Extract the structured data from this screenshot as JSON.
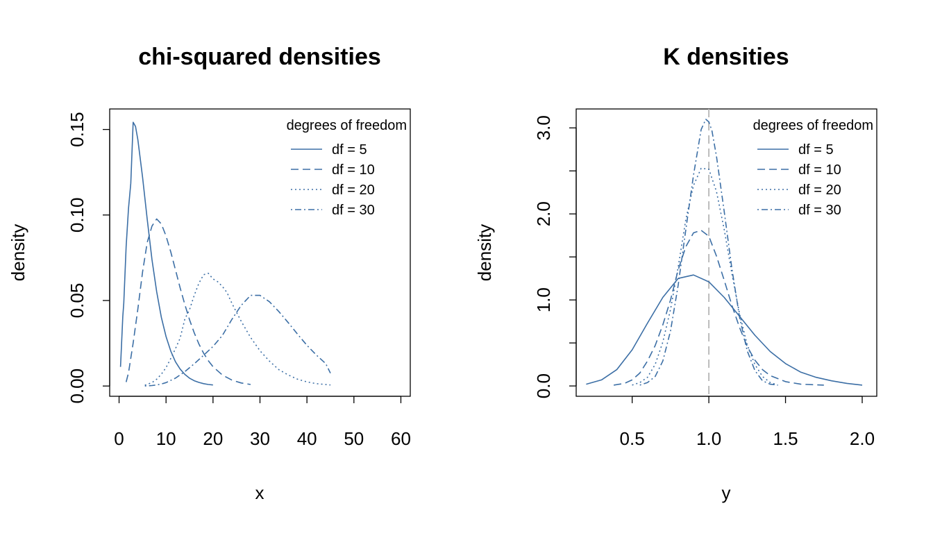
{
  "colors": {
    "series": "#3B6EA5",
    "axis": "#000000",
    "reference_line": "#BBBBBB",
    "background": "#FFFFFF"
  },
  "chart_data": [
    {
      "type": "line",
      "title": "chi-squared densities",
      "xlabel": "x",
      "ylabel": "density",
      "xlim": [
        -2,
        62
      ],
      "ylim": [
        -0.006,
        0.162
      ],
      "xticks": [
        0,
        10,
        20,
        30,
        40,
        50,
        60
      ],
      "xtick_labels": [
        "0",
        "10",
        "20",
        "30",
        "40",
        "50",
        "60"
      ],
      "yticks": [
        0,
        0.05,
        0.1,
        0.15
      ],
      "ytick_labels": [
        "0.00",
        "0.05",
        "0.10",
        "0.15"
      ],
      "ytick_minor": [],
      "legend": {
        "title": "degrees of freedom",
        "placement": "top-right",
        "entries": [
          "df = 5",
          "df = 10",
          "df = 20",
          "df = 30"
        ]
      },
      "series": [
        {
          "name": "df = 5",
          "linestyle": "solid",
          "x": [
            0.3,
            0.5,
            0.8,
            1,
            1.5,
            2,
            2.5,
            3,
            3.5,
            4,
            5,
            6,
            7,
            8,
            9,
            10,
            11,
            12,
            13,
            14,
            15,
            16,
            17,
            18,
            19,
            20
          ],
          "y": [
            0.0112,
            0.0227,
            0.0407,
            0.0484,
            0.0815,
            0.1038,
            0.1185,
            0.1542,
            0.1518,
            0.144,
            0.122,
            0.0974,
            0.074,
            0.0551,
            0.0402,
            0.0289,
            0.0204,
            0.0142,
            0.0099,
            0.0068,
            0.0046,
            0.0031,
            0.0021,
            0.0014,
            0.0009,
            0.0006
          ]
        },
        {
          "name": "df = 10",
          "linestyle": "dashed",
          "x": [
            1.5,
            2,
            3,
            4,
            5,
            6,
            7,
            8,
            9,
            10,
            11,
            12,
            13,
            14,
            15,
            16,
            17,
            18,
            19,
            20,
            22,
            24,
            26,
            28
          ],
          "y": [
            0.0023,
            0.0077,
            0.0251,
            0.0451,
            0.0668,
            0.084,
            0.0935,
            0.0977,
            0.0948,
            0.0877,
            0.0784,
            0.068,
            0.0574,
            0.0476,
            0.0388,
            0.0311,
            0.0246,
            0.0192,
            0.0148,
            0.0113,
            0.0064,
            0.0035,
            0.0018,
            0.0009
          ]
        },
        {
          "name": "df = 20",
          "linestyle": "dotted",
          "x": [
            5.5,
            7,
            8,
            9,
            10,
            11,
            12,
            13,
            14,
            15,
            16,
            17,
            18,
            19,
            20,
            21,
            22,
            23,
            24,
            25,
            26,
            27,
            28,
            30,
            32,
            34,
            36,
            38,
            40,
            42,
            45
          ],
          "y": [
            0.0005,
            0.002,
            0.004,
            0.0069,
            0.0108,
            0.0161,
            0.0218,
            0.028,
            0.0392,
            0.0446,
            0.053,
            0.0601,
            0.0651,
            0.0659,
            0.0626,
            0.061,
            0.0582,
            0.0546,
            0.0485,
            0.0431,
            0.0379,
            0.0331,
            0.0284,
            0.0206,
            0.0146,
            0.0096,
            0.0065,
            0.004,
            0.0024,
            0.0014,
            0.0006
          ]
        },
        {
          "name": "df = 30",
          "linestyle": "dotdash",
          "x": [
            5.5,
            6,
            7,
            8,
            9,
            10,
            12,
            14,
            16,
            18,
            20,
            22,
            24,
            26,
            28,
            30,
            32,
            34,
            36,
            38,
            40,
            42,
            44,
            45
          ],
          "y": [
            0.0,
            0.0001,
            0.0003,
            0.0006,
            0.0012,
            0.002,
            0.0046,
            0.0084,
            0.013,
            0.018,
            0.0231,
            0.0296,
            0.0389,
            0.0471,
            0.053,
            0.053,
            0.0493,
            0.0436,
            0.0371,
            0.0303,
            0.0238,
            0.0181,
            0.0131,
            0.0075
          ]
        }
      ]
    },
    {
      "type": "line",
      "title": "K densities",
      "xlabel": "y",
      "ylabel": "density",
      "xlim": [
        0.135,
        2.095
      ],
      "ylim": [
        -0.12,
        3.22
      ],
      "xticks": [
        0.5,
        1.0,
        1.5,
        2.0
      ],
      "xtick_labels": [
        "0.5",
        "1.0",
        "1.5",
        "2.0"
      ],
      "yticks": [
        0,
        1,
        2,
        3
      ],
      "ytick_labels": [
        "0.0",
        "1.0",
        "2.0",
        "3.0"
      ],
      "ytick_minor": [
        0.5,
        1.5,
        2.5
      ],
      "reference_line": {
        "orientation": "vertical",
        "x": 1.0,
        "linestyle": "dashed"
      },
      "legend": {
        "title": "degrees of freedom",
        "placement": "top-right",
        "entries": [
          "df = 5",
          "df = 10",
          "df = 20",
          "df = 30"
        ]
      },
      "series": [
        {
          "name": "df = 5",
          "linestyle": "solid",
          "x": [
            0.2,
            0.3,
            0.4,
            0.5,
            0.6,
            0.7,
            0.8,
            0.9,
            1.0,
            1.1,
            1.2,
            1.3,
            1.4,
            1.5,
            1.6,
            1.7,
            1.8,
            1.9,
            2.0
          ],
          "y": [
            0.02,
            0.07,
            0.19,
            0.42,
            0.73,
            1.03,
            1.25,
            1.29,
            1.21,
            1.03,
            0.81,
            0.59,
            0.4,
            0.26,
            0.16,
            0.1,
            0.06,
            0.03,
            0.01
          ]
        },
        {
          "name": "df = 10",
          "linestyle": "dashed",
          "x": [
            0.38,
            0.45,
            0.5,
            0.55,
            0.6,
            0.65,
            0.7,
            0.75,
            0.8,
            0.85,
            0.9,
            0.95,
            1.0,
            1.05,
            1.1,
            1.15,
            1.2,
            1.25,
            1.3,
            1.35,
            1.4,
            1.5,
            1.6,
            1.75
          ],
          "y": [
            0.01,
            0.03,
            0.07,
            0.15,
            0.29,
            0.47,
            0.71,
            1.0,
            1.35,
            1.62,
            1.78,
            1.81,
            1.74,
            1.51,
            1.23,
            0.94,
            0.68,
            0.46,
            0.3,
            0.19,
            0.12,
            0.05,
            0.02,
            0.01
          ]
        },
        {
          "name": "df = 20",
          "linestyle": "dotted",
          "x": [
            0.5,
            0.55,
            0.6,
            0.65,
            0.7,
            0.75,
            0.8,
            0.85,
            0.9,
            0.95,
            1.0,
            1.05,
            1.1,
            1.15,
            1.2,
            1.25,
            1.3,
            1.35,
            1.4,
            1.45
          ],
          "y": [
            0.01,
            0.04,
            0.1,
            0.25,
            0.51,
            0.89,
            1.38,
            1.94,
            2.33,
            2.53,
            2.52,
            2.26,
            1.82,
            1.31,
            0.84,
            0.48,
            0.25,
            0.11,
            0.04,
            0.01
          ]
        },
        {
          "name": "df = 30",
          "linestyle": "dotdash",
          "x": [
            0.55,
            0.6,
            0.65,
            0.7,
            0.75,
            0.8,
            0.85,
            0.9,
            0.95,
            0.98,
            1.0,
            1.02,
            1.05,
            1.1,
            1.15,
            1.2,
            1.25,
            1.3,
            1.35,
            1.4,
            1.45
          ],
          "y": [
            0.01,
            0.04,
            0.11,
            0.29,
            0.64,
            1.17,
            1.82,
            2.45,
            2.98,
            3.1,
            3.07,
            2.97,
            2.67,
            2.03,
            1.37,
            0.8,
            0.41,
            0.18,
            0.06,
            0.02,
            0.01
          ]
        }
      ]
    }
  ]
}
